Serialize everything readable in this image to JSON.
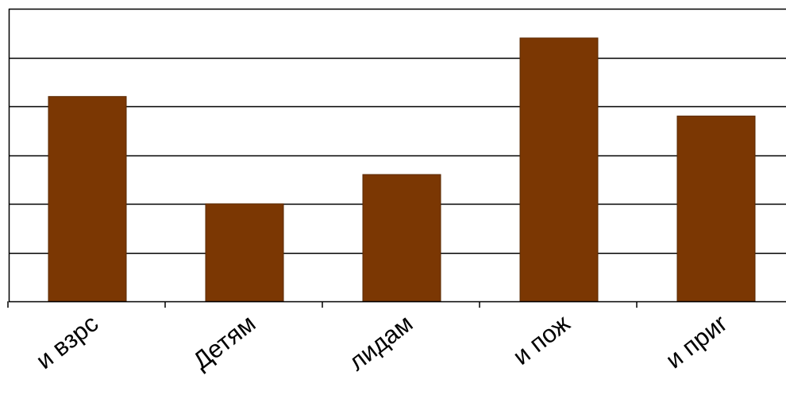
{
  "chart_data": {
    "type": "bar",
    "categories": [
      "и взрс",
      "Детям",
      "лидам",
      "и пож",
      "и приr"
    ],
    "values": [
      4.2,
      2.0,
      2.6,
      5.4,
      3.8
    ],
    "ylim": [
      0,
      6
    ],
    "ytick_step": 1,
    "grid": true,
    "legend": "none",
    "bar_color": "#7B3703",
    "grid_color": "#000000"
  }
}
